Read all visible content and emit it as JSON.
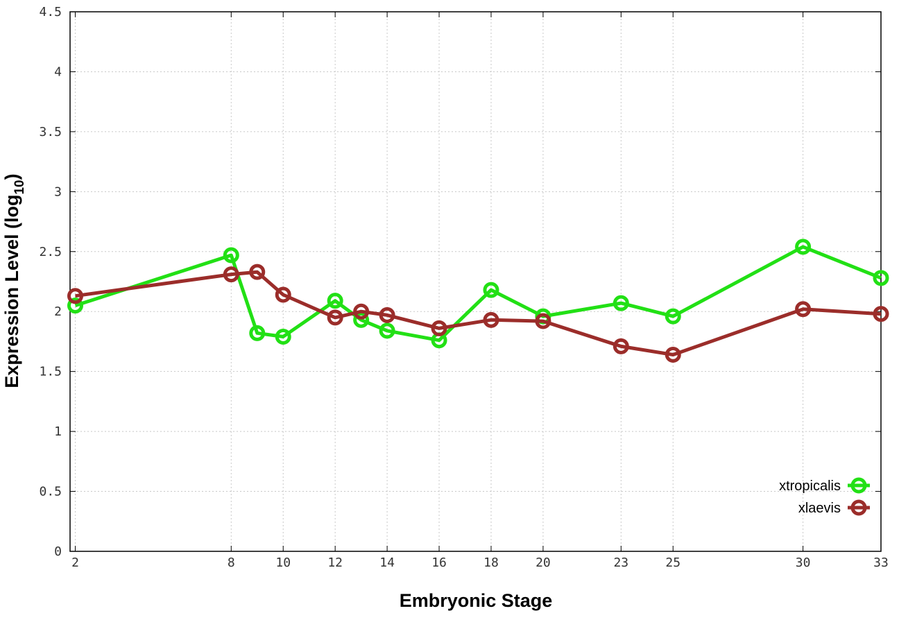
{
  "chart_data": {
    "type": "line",
    "title": "",
    "xlabel": "Embryonic Stage",
    "ylabel": "Expression Level (log",
    "ylabel_sub": "10",
    "ylabel_close": ")",
    "xlim": [
      1.8,
      33
    ],
    "ylim": [
      0,
      4.5
    ],
    "grid": true,
    "legend_position": "bottom-right",
    "x_ticks": [
      {
        "value": 2,
        "label": "2"
      },
      {
        "value": 8,
        "label": "8"
      },
      {
        "value": 10,
        "label": "10"
      },
      {
        "value": 12,
        "label": "12"
      },
      {
        "value": 14,
        "label": "14"
      },
      {
        "value": 16,
        "label": "16"
      },
      {
        "value": 18,
        "label": "18"
      },
      {
        "value": 20,
        "label": "20"
      },
      {
        "value": 23,
        "label": "23"
      },
      {
        "value": 25,
        "label": "25"
      },
      {
        "value": 30,
        "label": "30"
      },
      {
        "value": 33,
        "label": "33"
      }
    ],
    "y_ticks": [
      {
        "value": 0,
        "label": "0"
      },
      {
        "value": 0.5,
        "label": "0.5"
      },
      {
        "value": 1,
        "label": "1"
      },
      {
        "value": 1.5,
        "label": "1.5"
      },
      {
        "value": 2,
        "label": "2"
      },
      {
        "value": 2.5,
        "label": "2.5"
      },
      {
        "value": 3,
        "label": "3"
      },
      {
        "value": 3.5,
        "label": "3.5"
      },
      {
        "value": 4,
        "label": "4"
      },
      {
        "value": 4.5,
        "label": "4.5"
      }
    ],
    "series": [
      {
        "name": "xtropicalis",
        "color": "#22e015",
        "points": [
          [
            2,
            2.05
          ],
          [
            8,
            2.47
          ],
          [
            9,
            1.82
          ],
          [
            10,
            1.79
          ],
          [
            12,
            2.09
          ],
          [
            13,
            1.93
          ],
          [
            14,
            1.84
          ],
          [
            16,
            1.76
          ],
          [
            18,
            2.18
          ],
          [
            20,
            1.96
          ],
          [
            23,
            2.07
          ],
          [
            25,
            1.96
          ],
          [
            30,
            2.54
          ],
          [
            33,
            2.28
          ]
        ]
      },
      {
        "name": "xlaevis",
        "color": "#9b2d2a",
        "points": [
          [
            2,
            2.13
          ],
          [
            8,
            2.31
          ],
          [
            9,
            2.33
          ],
          [
            10,
            2.14
          ],
          [
            12,
            1.95
          ],
          [
            13,
            2.0
          ],
          [
            14,
            1.97
          ],
          [
            16,
            1.86
          ],
          [
            18,
            1.93
          ],
          [
            20,
            1.92
          ],
          [
            23,
            1.71
          ],
          [
            25,
            1.64
          ],
          [
            30,
            2.02
          ],
          [
            33,
            1.98
          ]
        ]
      }
    ]
  }
}
